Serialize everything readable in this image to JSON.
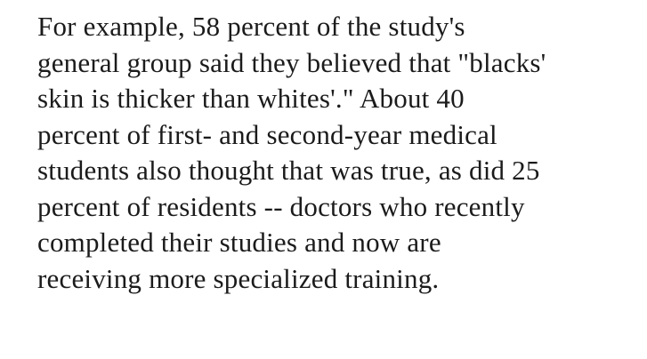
{
  "paragraph": {
    "lines": [
      "For example, 58 percent of the study's",
      "general group said they believed that \"blacks'",
      "skin is thicker than whites'.\" About 40",
      "percent of first- and second-year medical",
      "students also thought that was true, as did 25",
      "percent of residents -- doctors who recently",
      "completed their studies and now are",
      "receiving more specialized training."
    ]
  }
}
